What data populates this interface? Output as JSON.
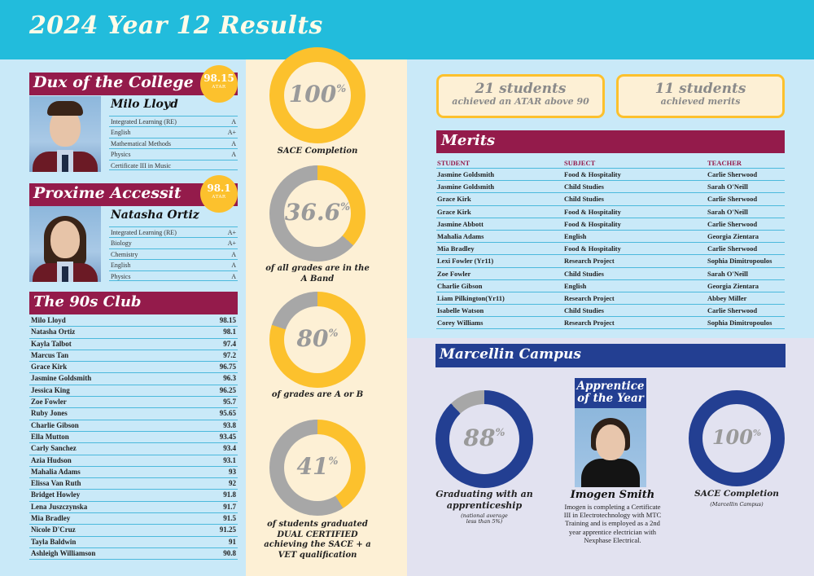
{
  "header": {
    "title": "2024 Year 12 Results"
  },
  "colors": {
    "header_bg": "#22bcdc",
    "maroon": "#941b4b",
    "gold": "#fcc12d",
    "navy": "#233f92",
    "grey": "#a7a7a7",
    "cream": "#fdf0d5",
    "light_blue": "#c9e9f8",
    "lavender": "#e2e2f0"
  },
  "dux": {
    "heading": "Dux of the College",
    "atar": "98.15",
    "atar_label": "ATAR",
    "name": "Milo Lloyd",
    "subjects": [
      {
        "subject": "Integrated Learning (RE)",
        "grade": "A"
      },
      {
        "subject": "English",
        "grade": "A+"
      },
      {
        "subject": "Mathematical Methods",
        "grade": "A"
      },
      {
        "subject": "Physics",
        "grade": "A"
      },
      {
        "subject": "Certificate III in Music",
        "grade": ""
      }
    ]
  },
  "proxime": {
    "heading": "Proxime Accessit",
    "atar": "98.1",
    "atar_label": "ATAR",
    "name": "Natasha Ortiz",
    "subjects": [
      {
        "subject": "Integrated Learning (RE)",
        "grade": "A+"
      },
      {
        "subject": "Biology",
        "grade": "A+"
      },
      {
        "subject": "Chemistry",
        "grade": "A"
      },
      {
        "subject": "English",
        "grade": "A"
      },
      {
        "subject": "Physics",
        "grade": "A"
      }
    ]
  },
  "club": {
    "heading": "The 90s Club",
    "rows": [
      {
        "name": "Milo Lloyd",
        "atar": "98.15"
      },
      {
        "name": "Natasha Ortiz",
        "atar": "98.1"
      },
      {
        "name": "Kayla Talbot",
        "atar": "97.4"
      },
      {
        "name": "Marcus Tan",
        "atar": "97.2"
      },
      {
        "name": "Grace Kirk",
        "atar": "96.75"
      },
      {
        "name": "Jasmine Goldsmith",
        "atar": "96.3"
      },
      {
        "name": "Jessica King",
        "atar": "96.25"
      },
      {
        "name": "Zoe Fowler",
        "atar": "95.7"
      },
      {
        "name": "Ruby Jones",
        "atar": "95.65"
      },
      {
        "name": "Charlie Gibson",
        "atar": "93.8"
      },
      {
        "name": "Ella Mutton",
        "atar": "93.45"
      },
      {
        "name": "Carly Sanchez",
        "atar": "93.4"
      },
      {
        "name": "Azia Hudson",
        "atar": "93.1"
      },
      {
        "name": "Mahalia Adams",
        "atar": "93"
      },
      {
        "name": "Elissa Van Ruth",
        "atar": "92"
      },
      {
        "name": "Bridget Howley",
        "atar": "91.8"
      },
      {
        "name": "Lena Juszczynska",
        "atar": "91.7"
      },
      {
        "name": "Mia Bradley",
        "atar": "91.5"
      },
      {
        "name": "Nicole D'Cruz",
        "atar": "91.25"
      },
      {
        "name": "Tayla Baldwin",
        "atar": "91"
      },
      {
        "name": "Ashleigh Williamson",
        "atar": "90.8"
      }
    ]
  },
  "stats": [
    {
      "value": "100",
      "pct_sign": "%",
      "percent": 100,
      "caption": "SACE Completion"
    },
    {
      "value": "36.6",
      "pct_sign": "%",
      "percent": 36.6,
      "caption": "of all grades are in the A Band"
    },
    {
      "value": "80",
      "pct_sign": "%",
      "percent": 80,
      "caption": "of grades are A or B"
    },
    {
      "value": "41",
      "pct_sign": "%",
      "percent": 41,
      "caption": "of students graduated DUAL CERTIFIED achieving the SACE + a VET qualification"
    }
  ],
  "highlights": [
    {
      "big": "21 students",
      "small": "achieved an ATAR above 90"
    },
    {
      "big": "11 students",
      "small": "achieved merits"
    }
  ],
  "merits": {
    "heading": "Merits",
    "columns": [
      "STUDENT",
      "SUBJECT",
      "TEACHER"
    ],
    "rows": [
      [
        "Jasmine Goldsmith",
        "Food & Hospitality",
        "Carlie Sherwood"
      ],
      [
        "Jasmine Goldsmith",
        "Child Studies",
        "Sarah O'Neill"
      ],
      [
        "Grace Kirk",
        "Child Studies",
        "Carlie Sherwood"
      ],
      [
        "Grace Kirk",
        "Food & Hospitality",
        "Sarah O'Neill"
      ],
      [
        "Jasmine Abbott",
        "Food & Hospitality",
        "Carlie Sherwood"
      ],
      [
        "Mahalia Adams",
        "English",
        "Georgia Zientara"
      ],
      [
        "Mia Bradley",
        "Food & Hospitality",
        "Carlie Sherwood"
      ],
      [
        "Lexi Fowler (Yr11)",
        "Research Project",
        "Sophia Dimitropoulos"
      ],
      [
        "Zoe Fowler",
        "Child Studies",
        "Sarah O'Neill"
      ],
      [
        "Charlie Gibson",
        "English",
        "Georgia Zientara"
      ],
      [
        "Liam Pilkington(Yr11)",
        "Research Project",
        "Abbey Miller"
      ],
      [
        "Isabelle Watson",
        "Child Studies",
        "Carlie Sherwood"
      ],
      [
        "Corey Williams",
        "Research Project",
        "Sophia Dimitropoulos"
      ]
    ]
  },
  "campus": {
    "heading": "Marcellin Campus",
    "apprenticeship": {
      "value": "88",
      "pct_sign": "%",
      "percent": 88,
      "caption": "Graduating with an apprenticeship",
      "note": "(national average less than 5%)"
    },
    "apprentice_of_year": {
      "title": "Apprentice of the Year",
      "name": "Imogen Smith",
      "description": "Imogen is completing a Certificate III in Electrotechnology with MTC Training and is employed as a 2nd year apprentice electrician with Nexphase Electrical."
    },
    "sace": {
      "value": "100",
      "pct_sign": "%",
      "percent": 100,
      "caption": "SACE Completion",
      "note": "(Marcellin Campus)"
    }
  }
}
